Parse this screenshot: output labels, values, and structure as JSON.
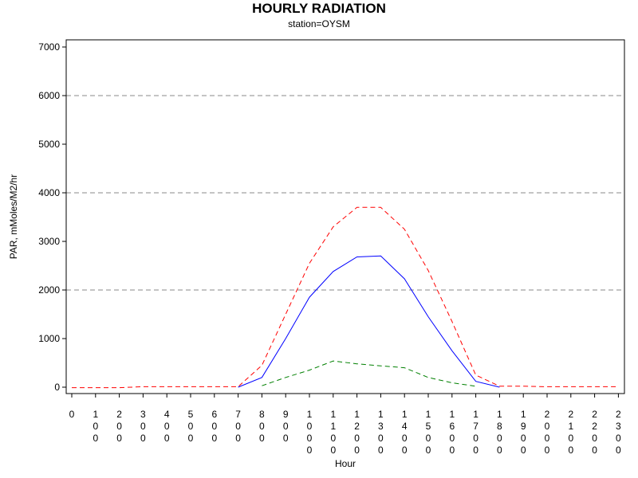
{
  "chart_data": {
    "type": "line",
    "title": "HOURLY RADIATION",
    "subtitle": "station=OYSM",
    "xlabel": "Hour",
    "ylabel": "PAR, mMoles/M2/hr",
    "ylim": [
      0,
      7000
    ],
    "y_ticks": [
      0,
      1000,
      2000,
      3000,
      4000,
      5000,
      6000,
      7000
    ],
    "x": [
      0,
      100,
      200,
      300,
      400,
      500,
      600,
      700,
      800,
      900,
      1000,
      1100,
      1200,
      1300,
      1400,
      1500,
      1600,
      1700,
      1800,
      1900,
      2000,
      2100,
      2200,
      2300
    ],
    "x_tick_labels": [
      "0",
      "100",
      "200",
      "300",
      "400",
      "500",
      "600",
      "700",
      "800",
      "900",
      "1000",
      "1100",
      "1200",
      "1300",
      "1400",
      "1500",
      "1600",
      "1700",
      "1800",
      "1900",
      "2000",
      "2100",
      "2200",
      "2300"
    ],
    "grid": {
      "y_dashed_at": [
        2000,
        4000,
        6000
      ]
    },
    "series": [
      {
        "key": "max",
        "color": "#ff0000",
        "style": "dashed",
        "values": [
          -10,
          -10,
          -10,
          10,
          10,
          10,
          10,
          10,
          450,
          1500,
          2550,
          3300,
          3700,
          3700,
          3250,
          2400,
          1350,
          250,
          20,
          20,
          10,
          10,
          10,
          10
        ]
      },
      {
        "key": "mean",
        "color": "#0000ff",
        "style": "solid",
        "values": [
          null,
          null,
          null,
          null,
          null,
          null,
          null,
          0,
          200,
          1000,
          1850,
          2380,
          2680,
          2700,
          2230,
          1450,
          750,
          120,
          0,
          null,
          null,
          null,
          null,
          null
        ]
      },
      {
        "key": "min",
        "color": "#008000",
        "style": "dashed",
        "values": [
          null,
          null,
          null,
          null,
          null,
          null,
          null,
          null,
          30,
          200,
          350,
          540,
          480,
          440,
          400,
          200,
          90,
          20,
          null,
          null,
          null,
          null,
          null,
          null
        ]
      }
    ]
  }
}
